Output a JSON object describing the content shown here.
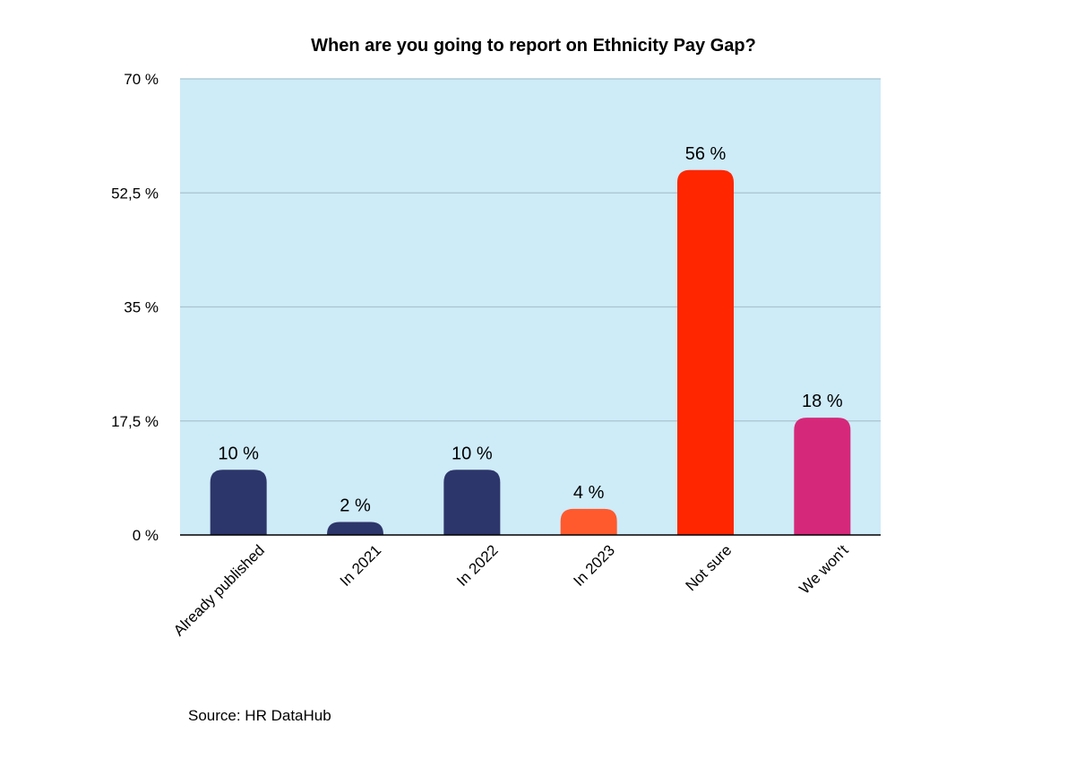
{
  "chart_data": {
    "type": "bar",
    "title": "When are you going to report on Ethnicity Pay Gap?",
    "categories": [
      "Already published",
      "In 2021",
      "In 2022",
      "In 2023",
      "Not sure",
      "We won't"
    ],
    "values": [
      10,
      2,
      10,
      4,
      56,
      18
    ],
    "value_labels": [
      "10 %",
      "2 %",
      "10 %",
      "4 %",
      "56 %",
      "18 %"
    ],
    "bar_colors": [
      "#2d366a",
      "#2d366a",
      "#2d366a",
      "#ff5a2e",
      "#ff2600",
      "#d6287a"
    ],
    "ylim": [
      0,
      70
    ],
    "yticks": [
      0,
      17.5,
      35,
      52.5,
      70
    ],
    "ytick_labels": [
      "0 %",
      "17,5 %",
      "35 %",
      "52,5 %",
      "70 %"
    ],
    "xlabel": "",
    "ylabel": "",
    "grid": true,
    "plot_background": "#ceebf8",
    "grid_color": "#a8c4d0",
    "source": "Source: HR DataHub"
  }
}
